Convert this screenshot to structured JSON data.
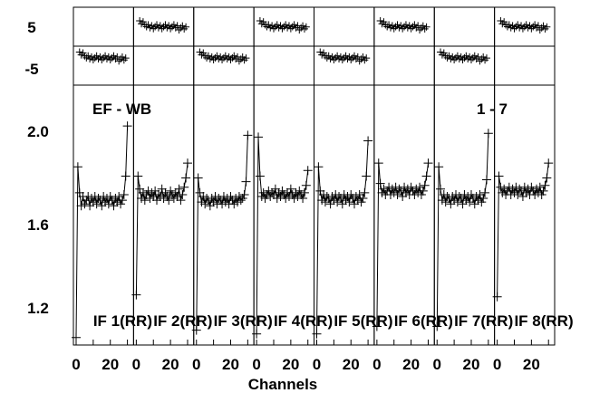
{
  "chart_data": {
    "type": "line",
    "xlabel": "Channels",
    "phase_panel": {
      "ylim": [
        -10,
        10
      ],
      "yticks": [
        "5",
        "-5"
      ]
    },
    "amp_panel": {
      "ylim": [
        1.04,
        2.44
      ],
      "yticks": [
        "2.0",
        "1.6",
        "1.2"
      ]
    },
    "xlim": [
      0,
      32
    ],
    "xticks": [
      "0",
      "20"
    ],
    "annotations": {
      "baseline": "EF - WB",
      "scan": "1 - 7"
    },
    "panels": [
      {
        "label": "IF 1(RR)",
        "phase": -3.0,
        "amp": [
          1.08,
          2.0,
          1.86,
          1.79,
          1.84,
          1.8,
          1.82,
          1.84,
          1.79,
          1.83,
          1.81,
          1.84,
          1.8,
          1.83,
          1.82,
          1.79,
          1.84,
          1.81,
          1.83,
          1.8,
          1.84,
          1.82,
          1.79,
          1.83,
          1.81,
          1.84,
          1.8,
          1.82,
          1.85,
          1.95,
          2.22
        ]
      },
      {
        "label": "IF 2(RR)",
        "phase": 5.0,
        "amp": [
          1.31,
          1.95,
          1.88,
          1.83,
          1.86,
          1.82,
          1.85,
          1.87,
          1.83,
          1.86,
          1.84,
          1.87,
          1.82,
          1.85,
          1.84,
          1.88,
          1.83,
          1.86,
          1.84,
          1.82,
          1.87,
          1.85,
          1.83,
          1.86,
          1.84,
          1.88,
          1.82,
          1.85,
          1.89,
          1.94,
          2.02
        ]
      },
      {
        "label": "IF 3(RR)",
        "phase": -3.0,
        "amp": [
          1.12,
          1.94,
          1.86,
          1.81,
          1.84,
          1.8,
          1.83,
          1.82,
          1.79,
          1.83,
          1.81,
          1.84,
          1.8,
          1.83,
          1.82,
          1.8,
          1.84,
          1.81,
          1.83,
          1.8,
          1.84,
          1.82,
          1.8,
          1.83,
          1.81,
          1.84,
          1.82,
          1.83,
          1.85,
          1.92,
          2.17
        ]
      },
      {
        "label": "IF 4(RR)",
        "phase": 5.0,
        "amp": [
          1.1,
          2.16,
          1.95,
          1.84,
          1.86,
          1.83,
          1.85,
          1.87,
          1.84,
          1.86,
          1.85,
          1.88,
          1.83,
          1.86,
          1.84,
          1.87,
          1.85,
          1.83,
          1.86,
          1.84,
          1.88,
          1.85,
          1.83,
          1.86,
          1.84,
          1.87,
          1.85,
          1.83,
          1.86,
          1.9,
          1.98
        ]
      },
      {
        "label": "IF 5(RR)",
        "phase": -3.0,
        "amp": [
          1.1,
          2.0,
          1.87,
          1.82,
          1.85,
          1.81,
          1.84,
          1.83,
          1.8,
          1.84,
          1.82,
          1.85,
          1.81,
          1.84,
          1.83,
          1.8,
          1.85,
          1.82,
          1.84,
          1.81,
          1.85,
          1.83,
          1.8,
          1.84,
          1.82,
          1.85,
          1.81,
          1.83,
          1.86,
          1.95,
          2.14
        ]
      },
      {
        "label": "IF 6(RR)",
        "phase": 5.0,
        "amp": [
          1.14,
          2.02,
          1.91,
          1.86,
          1.88,
          1.85,
          1.87,
          1.89,
          1.85,
          1.88,
          1.86,
          1.89,
          1.85,
          1.88,
          1.87,
          1.84,
          1.89,
          1.86,
          1.88,
          1.85,
          1.89,
          1.87,
          1.85,
          1.88,
          1.86,
          1.89,
          1.85,
          1.87,
          1.9,
          1.95,
          2.02
        ]
      },
      {
        "label": "IF 7(RR)",
        "phase": -3.0,
        "amp": [
          1.14,
          2.0,
          1.88,
          1.82,
          1.85,
          1.81,
          1.84,
          1.83,
          1.8,
          1.84,
          1.82,
          1.85,
          1.81,
          1.84,
          1.83,
          1.8,
          1.85,
          1.82,
          1.84,
          1.81,
          1.85,
          1.83,
          1.8,
          1.84,
          1.82,
          1.85,
          1.81,
          1.83,
          1.86,
          1.93,
          2.18
        ]
      },
      {
        "label": "IF 8(RR)",
        "phase": 5.0,
        "amp": [
          1.3,
          1.95,
          1.89,
          1.86,
          1.88,
          1.85,
          1.87,
          1.89,
          1.85,
          1.88,
          1.86,
          1.89,
          1.85,
          1.88,
          1.87,
          1.84,
          1.89,
          1.86,
          1.88,
          1.85,
          1.89,
          1.87,
          1.85,
          1.88,
          1.86,
          1.89,
          1.85,
          1.87,
          1.9,
          1.94,
          2.02
        ]
      }
    ]
  }
}
